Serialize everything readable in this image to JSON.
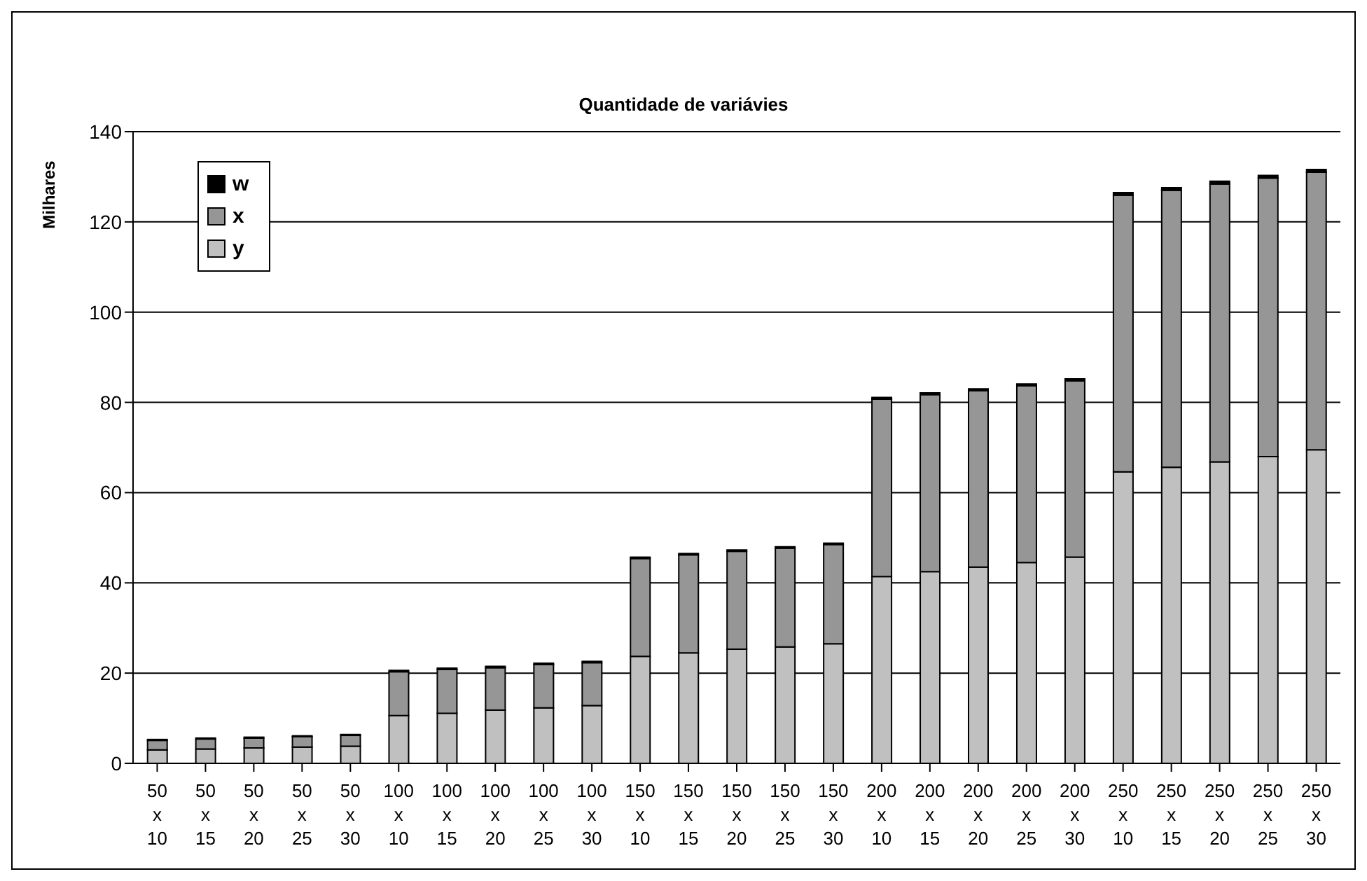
{
  "chart_data": {
    "type": "bar",
    "title": "Quantidade de variávies",
    "ylabel": "Milhares",
    "stacked": true,
    "categories": [
      "50 x 10",
      "50 x 15",
      "50 x 20",
      "50 x 25",
      "50 x 30",
      "100 x 10",
      "100 x 15",
      "100 x 20",
      "100 x 25",
      "100 x 30",
      "150 x 10",
      "150 x 15",
      "150 x 20",
      "150 x 25",
      "150 x 30",
      "200 x 10",
      "200 x 15",
      "200 x 20",
      "200 x 25",
      "200 x 30",
      "250 x 10",
      "250 x 15",
      "250 x 20",
      "250 x 25",
      "250 x 30"
    ],
    "series": [
      {
        "name": "y",
        "color": "#c0c0c0",
        "values": [
          3,
          3.2,
          3.4,
          3.6,
          3.8,
          10.6,
          11.1,
          11.8,
          12.3,
          12.8,
          23.7,
          24.5,
          25.3,
          25.8,
          26.5,
          41.4,
          42.5,
          43.5,
          44.5,
          45.7,
          64.6,
          65.6,
          66.8,
          68,
          69.5
        ]
      },
      {
        "name": "x",
        "color": "#969696",
        "values": [
          2.1,
          2.2,
          2.2,
          2.3,
          2.4,
          9.7,
          9.7,
          9.4,
          9.6,
          9.5,
          21.7,
          21.7,
          21.7,
          21.9,
          22,
          39.3,
          39.2,
          39.1,
          39.2,
          39.1,
          61.3,
          61.4,
          61.6,
          61.7,
          61.5
        ]
      },
      {
        "name": "w",
        "color": "#000000",
        "values": [
          0.2,
          0.2,
          0.2,
          0.2,
          0.2,
          0.3,
          0.3,
          0.3,
          0.3,
          0.3,
          0.3,
          0.3,
          0.3,
          0.3,
          0.3,
          0.4,
          0.4,
          0.4,
          0.4,
          0.4,
          0.6,
          0.6,
          0.6,
          0.6,
          0.6
        ]
      }
    ],
    "ylim": [
      0,
      140
    ],
    "yticks": [
      0,
      20,
      40,
      60,
      80,
      100,
      120,
      140
    ],
    "grid": "y",
    "legend": "top left"
  }
}
